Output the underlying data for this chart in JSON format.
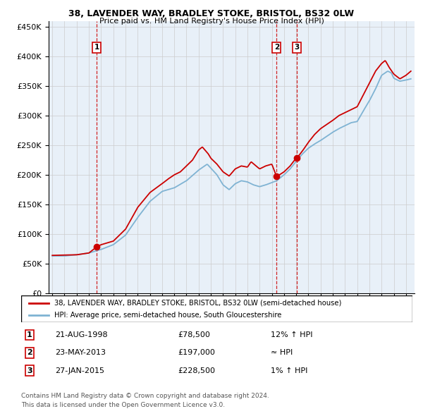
{
  "title1": "38, LAVENDER WAY, BRADLEY STOKE, BRISTOL, BS32 0LW",
  "title2": "Price paid vs. HM Land Registry's House Price Index (HPI)",
  "ylabel_ticks": [
    "£0",
    "£50K",
    "£100K",
    "£150K",
    "£200K",
    "£250K",
    "£300K",
    "£350K",
    "£400K",
    "£450K"
  ],
  "ytick_values": [
    0,
    50000,
    100000,
    150000,
    200000,
    250000,
    300000,
    350000,
    400000,
    450000
  ],
  "xmin": 1995,
  "xmax": 2024,
  "legend_red": "38, LAVENDER WAY, BRADLEY STOKE, BRISTOL, BS32 0LW (semi-detached house)",
  "legend_blue": "HPI: Average price, semi-detached house, South Gloucestershire",
  "transactions": [
    {
      "num": 1,
      "date": "21-AUG-1998",
      "price": 78500,
      "year": 1998.64,
      "label": "12% ↑ HPI"
    },
    {
      "num": 2,
      "date": "23-MAY-2013",
      "price": 197000,
      "year": 2013.39,
      "label": "≈ HPI"
    },
    {
      "num": 3,
      "date": "27-JAN-2015",
      "price": 228500,
      "year": 2015.07,
      "label": "1% ↑ HPI"
    }
  ],
  "footnote1": "Contains HM Land Registry data © Crown copyright and database right 2024.",
  "footnote2": "This data is licensed under the Open Government Licence v3.0.",
  "red_color": "#cc0000",
  "blue_color": "#7fb3d3",
  "vline_color": "#cc0000",
  "grid_color": "#cccccc",
  "bg_color": "#ffffff",
  "plot_bg": "#e8f0f8"
}
